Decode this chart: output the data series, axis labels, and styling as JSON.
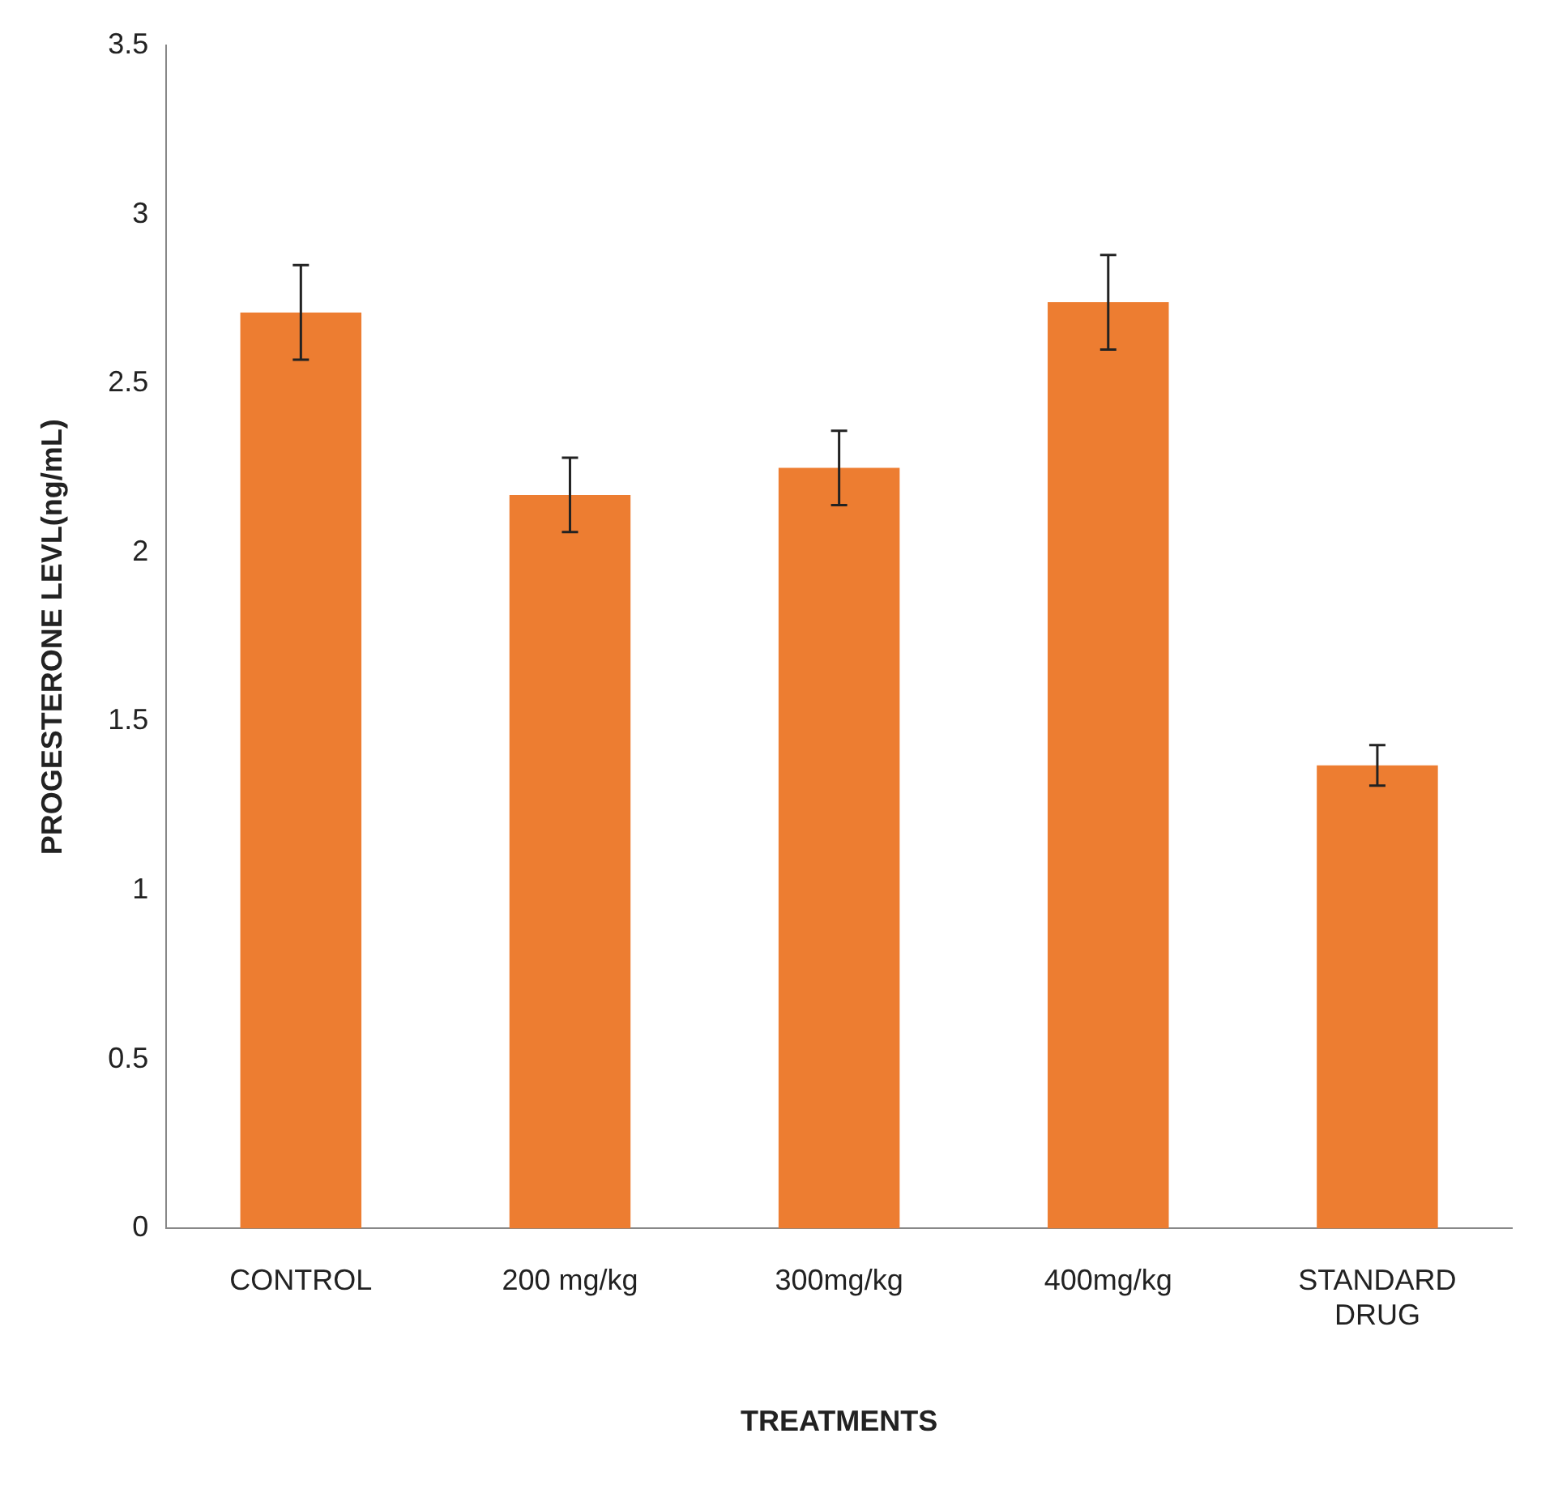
{
  "chart_data": {
    "type": "bar",
    "xlabel": "TREATMENTS",
    "ylabel": "PROGESTERONE LEVL(ng/mL)",
    "categories": [
      "CONTROL",
      "200 mg/kg",
      "300mg/kg",
      "400mg/kg",
      "STANDARD DRUG"
    ],
    "values": [
      2.71,
      2.17,
      2.25,
      2.74,
      1.37
    ],
    "errors": [
      0.14,
      0.11,
      0.11,
      0.14,
      0.06
    ],
    "color": "#ed7d31",
    "ylim": [
      0,
      3.5
    ],
    "yticks": [
      0,
      0.5,
      1,
      1.5,
      2,
      2.5,
      3,
      3.5
    ],
    "grid": false,
    "legend": false
  }
}
